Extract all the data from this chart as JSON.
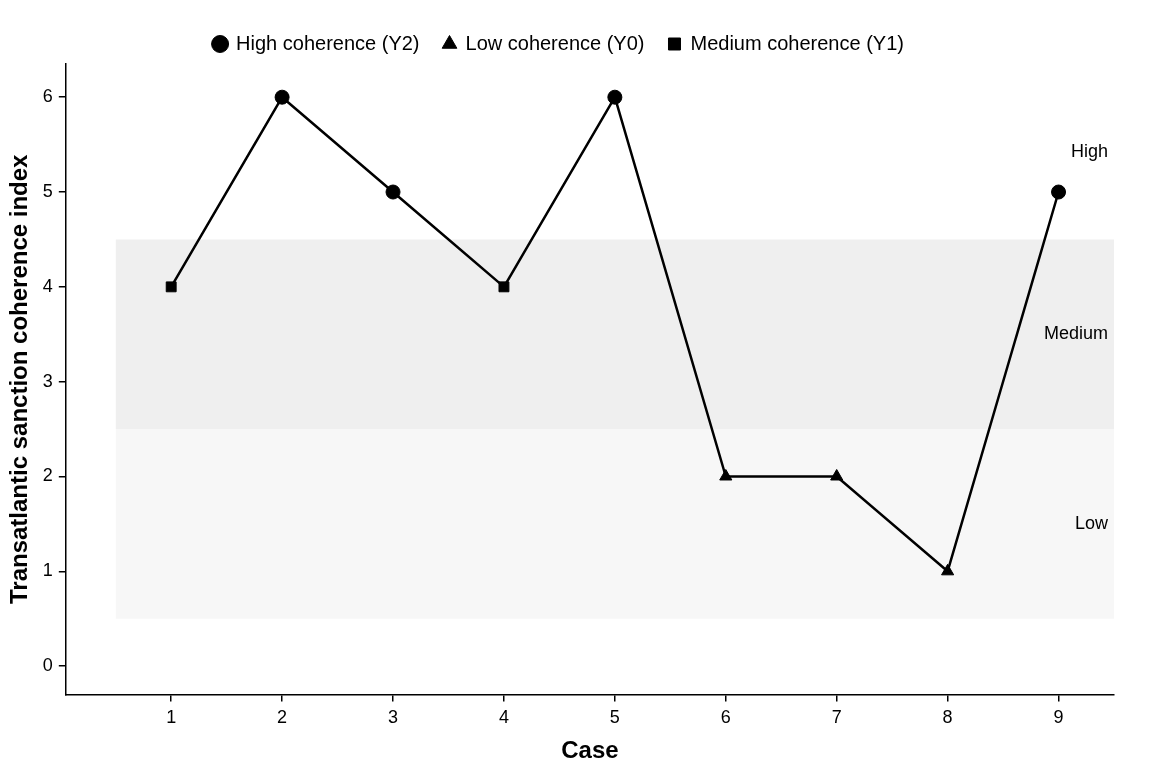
{
  "chart_data": {
    "type": "line",
    "xlabel": "Case",
    "ylabel": "Transatlantic sanction coherence index",
    "xlim": [
      0.05,
      9.5
    ],
    "xticks": [
      1,
      2,
      3,
      4,
      5,
      6,
      7,
      8,
      9
    ],
    "ylim": [
      -0.3,
      6.35
    ],
    "yticks": [
      0,
      1,
      2,
      3,
      4,
      5,
      6
    ],
    "grid": false,
    "legend": "top",
    "line_style": "solid",
    "series": [
      {
        "color": "#000000",
        "marker": "none",
        "x": [
          1,
          2,
          3,
          4,
          5,
          6,
          7,
          8,
          9
        ],
        "values": [
          4,
          6,
          5,
          4,
          6,
          2,
          2,
          1,
          5
        ]
      },
      {
        "type": "scatter",
        "name": "High coherence (Y2)",
        "color": "#000000",
        "marker": "circle",
        "x": [
          2,
          3,
          5,
          9
        ],
        "values": [
          6,
          5,
          6,
          5
        ]
      },
      {
        "type": "scatter",
        "name": "Low coherence (Y0)",
        "color": "#000000",
        "marker": "triangle",
        "x": [
          6,
          7,
          8
        ],
        "values": [
          2,
          2,
          1
        ]
      },
      {
        "type": "scatter",
        "name": "Medium coherence (Y1)",
        "color": "#000000",
        "marker": "square",
        "x": [
          1,
          4
        ],
        "values": [
          4,
          4
        ]
      }
    ],
    "bands": [
      {
        "axis": "y",
        "from": 0.5,
        "to": 2.5,
        "label": "Low",
        "color": "#f7f7f7"
      },
      {
        "axis": "y",
        "from": 2.5,
        "to": 4.5,
        "label": "Medium",
        "color": "#efefef"
      }
    ],
    "annotations": [
      "High"
    ]
  }
}
